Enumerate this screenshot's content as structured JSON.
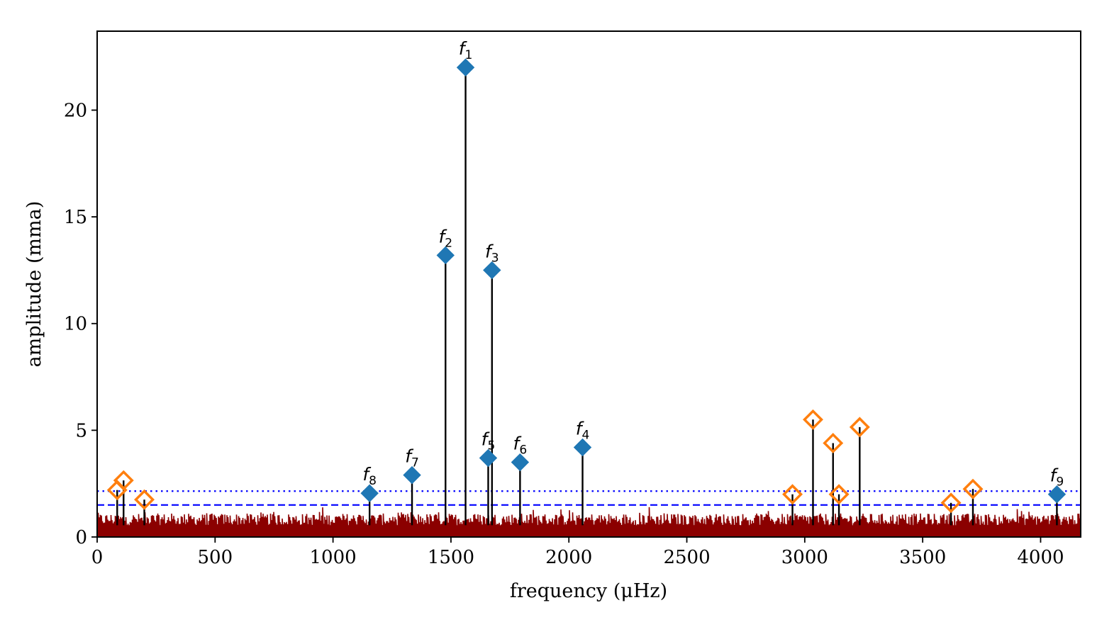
{
  "chart_data": {
    "type": "line",
    "xlabel": "frequency (μHz)",
    "ylabel": "amplitude (mma)",
    "xlim": [
      0,
      4170
    ],
    "ylim": [
      0,
      23.7
    ],
    "x_ticks": [
      0,
      500,
      1000,
      1500,
      2000,
      2500,
      3000,
      3500,
      4000
    ],
    "y_ticks": [
      0,
      5,
      10,
      15,
      20
    ],
    "grid": false,
    "colors": {
      "noise_spectrum": "#8b0000",
      "identified_mode": "#1f77b4",
      "combination_peak": "#ff7f0e",
      "stem": "#000000",
      "threshold_lines": "#0000ff"
    },
    "thresholds": [
      {
        "style": "dotted",
        "y": 2.15
      },
      {
        "style": "dashed",
        "y": 1.5
      }
    ],
    "labeled_peaks": [
      {
        "label": "f",
        "sub": "1",
        "x": 1562,
        "y": 22.0
      },
      {
        "label": "f",
        "sub": "2",
        "x": 1477,
        "y": 13.2
      },
      {
        "label": "f",
        "sub": "3",
        "x": 1674,
        "y": 12.5
      },
      {
        "label": "f",
        "sub": "4",
        "x": 2058,
        "y": 4.2
      },
      {
        "label": "f",
        "sub": "5",
        "x": 1658,
        "y": 3.7
      },
      {
        "label": "f",
        "sub": "6",
        "x": 1793,
        "y": 3.5
      },
      {
        "label": "f",
        "sub": "7",
        "x": 1335,
        "y": 2.9
      },
      {
        "label": "f",
        "sub": "8",
        "x": 1155,
        "y": 2.05
      },
      {
        "label": "f",
        "sub": "9",
        "x": 4069,
        "y": 2.0
      }
    ],
    "combination_peaks": [
      {
        "x": 85,
        "y": 2.2
      },
      {
        "x": 112,
        "y": 2.65
      },
      {
        "x": 200,
        "y": 1.75
      },
      {
        "x": 2948,
        "y": 2.0
      },
      {
        "x": 3035,
        "y": 5.5
      },
      {
        "x": 3120,
        "y": 4.4
      },
      {
        "x": 3145,
        "y": 2.0
      },
      {
        "x": 3233,
        "y": 5.15
      },
      {
        "x": 3620,
        "y": 1.6
      },
      {
        "x": 3713,
        "y": 2.25
      }
    ]
  }
}
